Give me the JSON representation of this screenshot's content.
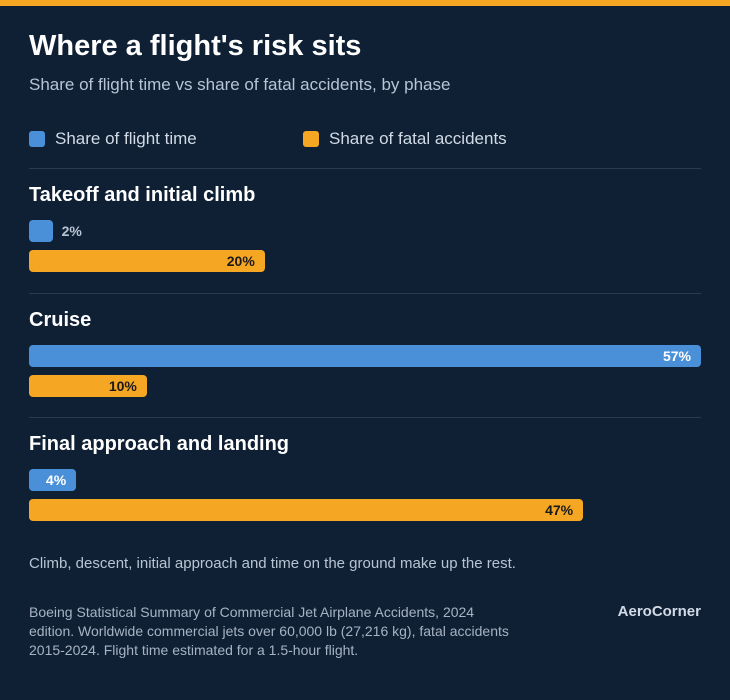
{
  "chart_data": {
    "type": "bar",
    "title": "Where a flight's risk sits",
    "subtitle": "Share of flight time vs share of fatal accidents, by phase",
    "categories": [
      "Takeoff and initial climb",
      "Cruise",
      "Final approach and landing"
    ],
    "series": [
      {
        "name": "Share of flight time",
        "color": "#4a90d9",
        "values": [
          2,
          57,
          4
        ],
        "value_labels": [
          "2%",
          "57%",
          "4%"
        ]
      },
      {
        "name": "Share of fatal accidents",
        "color": "#f5a623",
        "values": [
          20,
          10,
          47
        ],
        "value_labels": [
          "20%",
          "10%",
          "47%"
        ]
      }
    ],
    "note": "Climb, descent, initial approach and time on the ground make up the rest.",
    "source": "Boeing Statistical Summary of Commercial Jet Airplane Accidents, 2024 edition. Worldwide commercial jets over 60,000 lb (27,216 kg), fatal accidents 2015-2024. Flight time estimated for a 1.5-hour flight.",
    "brand": "AeroCorner"
  }
}
